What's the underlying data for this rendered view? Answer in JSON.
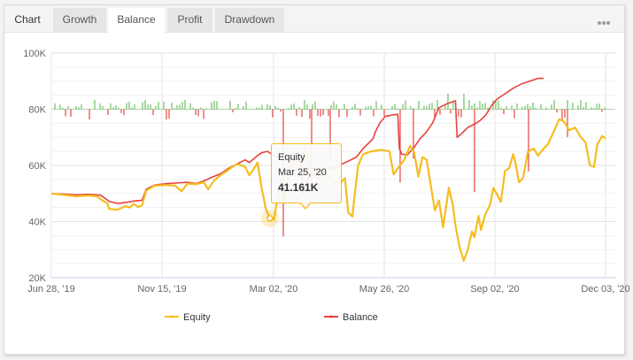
{
  "tabs": [
    {
      "label": "Chart",
      "type": "label"
    },
    {
      "label": "Growth",
      "type": "tab"
    },
    {
      "label": "Balance",
      "type": "tab",
      "active": true
    },
    {
      "label": "Profit",
      "type": "tab"
    },
    {
      "label": "Drawdown",
      "type": "tab"
    }
  ],
  "more_icon": "ellipsis-icon",
  "tooltip": {
    "series": "Equity",
    "date": "Mar 25, '20",
    "value": "41.161K"
  },
  "colors": {
    "equity": "#f5bd1f",
    "balance": "#e8423f",
    "bar_positive": "#6cbf62",
    "bar_negative": "#e8423f",
    "grid": "#e9e9e9",
    "axis": "#ccd6eb"
  },
  "chart_data": {
    "type": "line",
    "title": "",
    "xlabel": "",
    "ylabel": "",
    "ylim": [
      20000,
      100000
    ],
    "yticks": [
      "20K",
      "40K",
      "60K",
      "80K",
      "100K"
    ],
    "xticks": [
      "Jun 28, '19",
      "Nov 15, '19",
      "Mar 02, '20",
      "May 26, '20",
      "Sep 02, '20",
      "Dec 03, '20"
    ],
    "legend": [
      "Equity",
      "Balance"
    ],
    "legend_position": "bottom",
    "grid": true,
    "x_range_days": [
      0,
      530
    ],
    "series": [
      {
        "name": "Balance",
        "points": [
          [
            0,
            50000
          ],
          [
            15,
            49800
          ],
          [
            30,
            49500
          ],
          [
            45,
            49700
          ],
          [
            60,
            49400
          ],
          [
            70,
            47200
          ],
          [
            80,
            46500
          ],
          [
            90,
            46800
          ],
          [
            100,
            47300
          ],
          [
            110,
            47600
          ],
          [
            115,
            51500
          ],
          [
            125,
            53000
          ],
          [
            140,
            53500
          ],
          [
            150,
            53700
          ],
          [
            165,
            54000
          ],
          [
            175,
            53500
          ],
          [
            185,
            54500
          ],
          [
            195,
            55800
          ],
          [
            205,
            57000
          ],
          [
            215,
            59000
          ],
          [
            225,
            60500
          ],
          [
            235,
            62000
          ],
          [
            240,
            61000
          ],
          [
            250,
            63500
          ],
          [
            255,
            64500
          ],
          [
            262,
            65000
          ],
          [
            268,
            63800
          ],
          [
            275,
            62800
          ],
          [
            285,
            63000
          ],
          [
            295,
            62000
          ],
          [
            303,
            62800
          ],
          [
            305,
            50000
          ],
          [
            310,
            55000
          ],
          [
            318,
            57500
          ],
          [
            330,
            58500
          ],
          [
            345,
            59500
          ],
          [
            360,
            61500
          ],
          [
            370,
            63000
          ],
          [
            378,
            66000
          ],
          [
            385,
            68000
          ],
          [
            390,
            69500
          ],
          [
            393,
            72000
          ],
          [
            398,
            75000
          ],
          [
            405,
            77500
          ],
          [
            415,
            78000
          ],
          [
            420,
            78200
          ],
          [
            422,
            66000
          ],
          [
            425,
            64000
          ],
          [
            432,
            63800
          ],
          [
            440,
            66500
          ],
          [
            447,
            69500
          ],
          [
            455,
            72000
          ],
          [
            462,
            75000
          ],
          [
            470,
            80500
          ],
          [
            480,
            82000
          ],
          [
            490,
            83000
          ],
          [
            492,
            70000
          ],
          [
            498,
            71500
          ],
          [
            505,
            73500
          ],
          [
            515,
            75000
          ],
          [
            520,
            76000
          ],
          [
            527,
            78000
          ],
          [
            533,
            81000
          ],
          [
            540,
            83500
          ],
          [
            550,
            85500
          ],
          [
            560,
            87500
          ],
          [
            570,
            89000
          ],
          [
            580,
            90000
          ],
          [
            590,
            91000
          ],
          [
            597,
            91000
          ]
        ]
      },
      {
        "name": "Equity",
        "points": [
          [
            0,
            50000
          ],
          [
            15,
            49500
          ],
          [
            30,
            49000
          ],
          [
            45,
            49300
          ],
          [
            55,
            49000
          ],
          [
            62,
            47500
          ],
          [
            68,
            46500
          ],
          [
            70,
            44500
          ],
          [
            80,
            44200
          ],
          [
            90,
            45500
          ],
          [
            95,
            45000
          ],
          [
            100,
            46300
          ],
          [
            105,
            45200
          ],
          [
            110,
            45800
          ],
          [
            115,
            51000
          ],
          [
            125,
            52800
          ],
          [
            140,
            53000
          ],
          [
            150,
            52800
          ],
          [
            158,
            50800
          ],
          [
            165,
            53500
          ],
          [
            175,
            53300
          ],
          [
            185,
            54000
          ],
          [
            190,
            51500
          ],
          [
            197,
            54500
          ],
          [
            205,
            56500
          ],
          [
            215,
            58500
          ],
          [
            225,
            60500
          ],
          [
            235,
            59500
          ],
          [
            240,
            56500
          ],
          [
            245,
            58500
          ],
          [
            250,
            61000
          ],
          [
            255,
            52000
          ],
          [
            260,
            44500
          ],
          [
            265,
            41161
          ],
          [
            270,
            40700
          ],
          [
            278,
            55000
          ],
          [
            283,
            48000
          ],
          [
            288,
            58000
          ],
          [
            295,
            62000
          ],
          [
            302,
            59000
          ],
          [
            308,
            66000
          ],
          [
            312,
            60500
          ],
          [
            318,
            56500
          ],
          [
            325,
            55200
          ],
          [
            330,
            57500
          ],
          [
            340,
            55000
          ],
          [
            350,
            53500
          ],
          [
            356,
            55500
          ],
          [
            360,
            43200
          ],
          [
            365,
            41800
          ],
          [
            368,
            50000
          ],
          [
            372,
            60000
          ],
          [
            378,
            64000
          ],
          [
            388,
            65000
          ],
          [
            400,
            65500
          ],
          [
            410,
            65000
          ],
          [
            415,
            56800
          ],
          [
            420,
            59000
          ],
          [
            428,
            62000
          ],
          [
            435,
            67000
          ],
          [
            440,
            64500
          ],
          [
            445,
            56000
          ],
          [
            450,
            63000
          ],
          [
            455,
            62000
          ],
          [
            460,
            53000
          ],
          [
            465,
            44000
          ],
          [
            470,
            47500
          ],
          [
            475,
            38000
          ],
          [
            482,
            52000
          ],
          [
            487,
            45500
          ],
          [
            490,
            38500
          ],
          [
            495,
            31000
          ],
          [
            500,
            26000
          ],
          [
            505,
            30000
          ],
          [
            510,
            36500
          ],
          [
            513,
            34500
          ],
          [
            518,
            42000
          ],
          [
            521,
            37000
          ],
          [
            526,
            42500
          ],
          [
            532,
            46000
          ],
          [
            536,
            52000
          ],
          [
            540,
            50000
          ],
          [
            545,
            47000
          ],
          [
            550,
            58000
          ],
          [
            555,
            59000
          ],
          [
            560,
            64000
          ],
          [
            563,
            60500
          ],
          [
            567,
            54000
          ],
          [
            572,
            55500
          ],
          [
            578,
            65000
          ],
          [
            585,
            66000
          ],
          [
            590,
            63500
          ],
          [
            597,
            66000
          ],
          [
            602,
            67500
          ],
          [
            610,
            72500
          ],
          [
            616,
            76500
          ],
          [
            622,
            75500
          ],
          [
            628,
            72500
          ],
          [
            635,
            73500
          ],
          [
            641,
            70500
          ],
          [
            648,
            68000
          ],
          [
            653,
            60000
          ],
          [
            658,
            59500
          ],
          [
            662,
            67500
          ],
          [
            668,
            70500
          ],
          [
            672,
            69500
          ]
        ]
      }
    ],
    "bars_baseline": 80000,
    "bars_note": "daily profit/loss micro-bars around 80K baseline (green positive, red negative)"
  }
}
